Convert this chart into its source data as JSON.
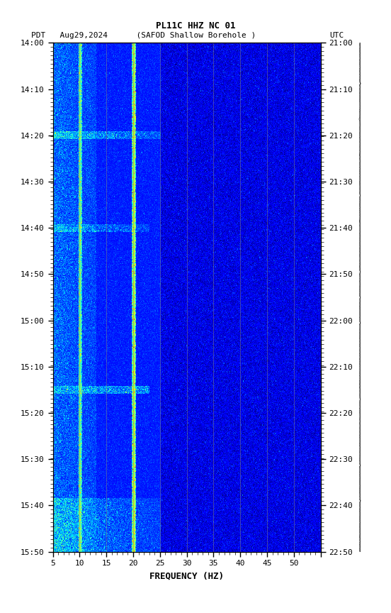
{
  "title_line1": "PL11C HHZ NC 01",
  "title_line2_left": "PDT   Aug29,2024      (SAFOD Shallow Borehole )",
  "title_line2_right": "UTC",
  "xlabel": "FREQUENCY (HZ)",
  "ylabel_left": "PDT",
  "ylabel_right": "UTC",
  "freq_min": 0,
  "freq_max": 50,
  "time_start_pdt": "14:00",
  "time_end_pdt": "15:50",
  "time_start_utc": "21:00",
  "time_end_utc": "22:50",
  "yticks_pdt": [
    "14:00",
    "14:10",
    "14:20",
    "14:30",
    "14:40",
    "14:50",
    "15:00",
    "15:10",
    "15:20",
    "15:30",
    "15:40",
    "15:50"
  ],
  "yticks_utc": [
    "21:00",
    "21:10",
    "21:20",
    "21:30",
    "21:40",
    "21:50",
    "22:00",
    "22:10",
    "22:20",
    "22:30",
    "22:40",
    "22:50"
  ],
  "vertical_lines_freq": [
    5,
    10,
    15,
    20,
    25,
    30,
    35,
    40,
    45
  ],
  "hot_lines_freq": [
    5,
    15
  ],
  "background_color": "#ffffff",
  "plot_bg_color": "#000080",
  "colormap": "jet",
  "noise_seed": 42,
  "fig_width": 5.52,
  "fig_height": 8.64
}
